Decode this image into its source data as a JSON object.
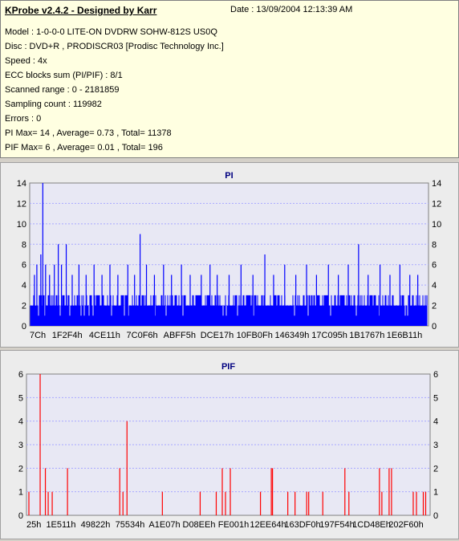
{
  "app": {
    "title": "KProbe v2.4.2 - Designed by Karr",
    "date": "Date : 13/09/2004 12:13:39 AM"
  },
  "info": {
    "lines": [
      "Model : 1-0-0-0 LITE-ON DVDRW SOHW-812S  US0Q",
      "Disc : DVD+R , PRODISCR03 [Prodisc Technology Inc.]",
      "Speed : 4x",
      "ECC blocks sum (PI/PIF) : 8/1",
      "Scanned range : 0 - 2181859",
      "Sampling count : 119982",
      "Errors : 0",
      "PI Max= 14 , Average= 0.73 , Total= 11378",
      "PIF Max= 6 , Average= 0.01 , Total= 196"
    ]
  },
  "colors": {
    "pi": "#0000ff",
    "pif": "#ff0000",
    "plot_bg": "#e8e8f4",
    "grid": "#a8a8ff",
    "title": "#000080"
  },
  "chart_data": [
    {
      "type": "bar",
      "title": "PI",
      "ylim": [
        0,
        14
      ],
      "yticks": [
        0,
        2,
        4,
        6,
        8,
        10,
        12,
        14
      ],
      "xticks": [
        "7Ch",
        "1F2F4h",
        "4CE11h",
        "7C0F6h",
        "ABFF5h",
        "DCE17h",
        "10FB0Fh",
        "146349h",
        "17C095h",
        "1B1767h",
        "1E6B11h"
      ],
      "baseline": {
        "dense_level": 3,
        "note": "dense band of values 2-3 across the whole range"
      },
      "peaks": [
        {
          "pos": 0.01,
          "value": 5
        },
        {
          "pos": 0.016,
          "value": 6
        },
        {
          "pos": 0.026,
          "value": 7
        },
        {
          "pos": 0.031,
          "value": 14
        },
        {
          "pos": 0.038,
          "value": 6
        },
        {
          "pos": 0.048,
          "value": 5
        },
        {
          "pos": 0.06,
          "value": 6
        },
        {
          "pos": 0.07,
          "value": 8
        },
        {
          "pos": 0.078,
          "value": 6
        },
        {
          "pos": 0.09,
          "value": 8
        },
        {
          "pos": 0.105,
          "value": 5
        },
        {
          "pos": 0.122,
          "value": 6
        },
        {
          "pos": 0.14,
          "value": 5
        },
        {
          "pos": 0.16,
          "value": 6
        },
        {
          "pos": 0.18,
          "value": 5
        },
        {
          "pos": 0.2,
          "value": 6
        },
        {
          "pos": 0.22,
          "value": 5
        },
        {
          "pos": 0.245,
          "value": 6
        },
        {
          "pos": 0.262,
          "value": 5
        },
        {
          "pos": 0.276,
          "value": 9
        },
        {
          "pos": 0.292,
          "value": 6
        },
        {
          "pos": 0.312,
          "value": 5
        },
        {
          "pos": 0.335,
          "value": 6
        },
        {
          "pos": 0.355,
          "value": 5
        },
        {
          "pos": 0.38,
          "value": 6
        },
        {
          "pos": 0.402,
          "value": 5
        },
        {
          "pos": 0.43,
          "value": 5
        },
        {
          "pos": 0.452,
          "value": 6
        },
        {
          "pos": 0.47,
          "value": 5
        },
        {
          "pos": 0.5,
          "value": 5
        },
        {
          "pos": 0.53,
          "value": 6
        },
        {
          "pos": 0.56,
          "value": 5
        },
        {
          "pos": 0.59,
          "value": 7
        },
        {
          "pos": 0.612,
          "value": 5
        },
        {
          "pos": 0.64,
          "value": 6
        },
        {
          "pos": 0.668,
          "value": 5
        },
        {
          "pos": 0.695,
          "value": 6
        },
        {
          "pos": 0.72,
          "value": 5
        },
        {
          "pos": 0.75,
          "value": 6
        },
        {
          "pos": 0.775,
          "value": 5
        },
        {
          "pos": 0.8,
          "value": 6
        },
        {
          "pos": 0.826,
          "value": 8
        },
        {
          "pos": 0.85,
          "value": 5
        },
        {
          "pos": 0.88,
          "value": 6
        },
        {
          "pos": 0.905,
          "value": 5
        },
        {
          "pos": 0.93,
          "value": 6
        },
        {
          "pos": 0.955,
          "value": 5
        },
        {
          "pos": 0.975,
          "value": 5
        }
      ]
    },
    {
      "type": "bar",
      "title": "PIF",
      "ylim": [
        0,
        6
      ],
      "yticks": [
        0,
        1,
        2,
        3,
        4,
        5,
        6
      ],
      "xticks": [
        "25h",
        "1E511h",
        "49822h",
        "75534h",
        "A1E07h",
        "D08EEh",
        "FE001h",
        "12EE64h",
        "163DF0h",
        "197F54h",
        "1CD48Eh",
        "202F60h"
      ],
      "bars": [
        {
          "pos": 0.004,
          "value": 1
        },
        {
          "pos": 0.032,
          "value": 6
        },
        {
          "pos": 0.045,
          "value": 2
        },
        {
          "pos": 0.052,
          "value": 1
        },
        {
          "pos": 0.062,
          "value": 1
        },
        {
          "pos": 0.1,
          "value": 2
        },
        {
          "pos": 0.23,
          "value": 2
        },
        {
          "pos": 0.238,
          "value": 1
        },
        {
          "pos": 0.248,
          "value": 4
        },
        {
          "pos": 0.336,
          "value": 1
        },
        {
          "pos": 0.43,
          "value": 1
        },
        {
          "pos": 0.47,
          "value": 1
        },
        {
          "pos": 0.485,
          "value": 2
        },
        {
          "pos": 0.493,
          "value": 1
        },
        {
          "pos": 0.505,
          "value": 2
        },
        {
          "pos": 0.58,
          "value": 1
        },
        {
          "pos": 0.607,
          "value": 2
        },
        {
          "pos": 0.61,
          "value": 2
        },
        {
          "pos": 0.648,
          "value": 1
        },
        {
          "pos": 0.666,
          "value": 1
        },
        {
          "pos": 0.695,
          "value": 1
        },
        {
          "pos": 0.7,
          "value": 1
        },
        {
          "pos": 0.735,
          "value": 1
        },
        {
          "pos": 0.79,
          "value": 2
        },
        {
          "pos": 0.8,
          "value": 1
        },
        {
          "pos": 0.876,
          "value": 2
        },
        {
          "pos": 0.882,
          "value": 1
        },
        {
          "pos": 0.9,
          "value": 2
        },
        {
          "pos": 0.906,
          "value": 2
        },
        {
          "pos": 0.96,
          "value": 1
        },
        {
          "pos": 0.968,
          "value": 1
        },
        {
          "pos": 0.985,
          "value": 1
        },
        {
          "pos": 0.991,
          "value": 1
        }
      ]
    }
  ]
}
